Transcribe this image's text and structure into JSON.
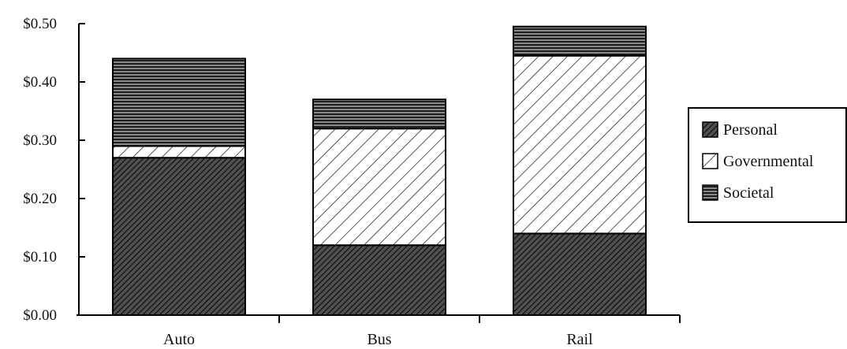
{
  "chart_data": {
    "type": "bar",
    "stacked": true,
    "title": "",
    "xlabel": "",
    "ylabel": "",
    "categories": [
      "Auto",
      "Bus",
      "Rail"
    ],
    "series": [
      {
        "name": "Personal",
        "pattern": "dense-diagonal",
        "values": [
          0.27,
          0.12,
          0.14
        ]
      },
      {
        "name": "Governmental",
        "pattern": "open-diagonal",
        "values": [
          0.02,
          0.2,
          0.305
        ]
      },
      {
        "name": "Societal",
        "pattern": "horizontal-lines",
        "values": [
          0.15,
          0.05,
          0.05
        ]
      }
    ],
    "ylim": [
      0,
      0.5
    ],
    "yticks": [
      "$0.00",
      "$0.10",
      "$0.20",
      "$0.30",
      "$0.40",
      "$0.50"
    ],
    "grid": false,
    "legend_position": "right"
  }
}
